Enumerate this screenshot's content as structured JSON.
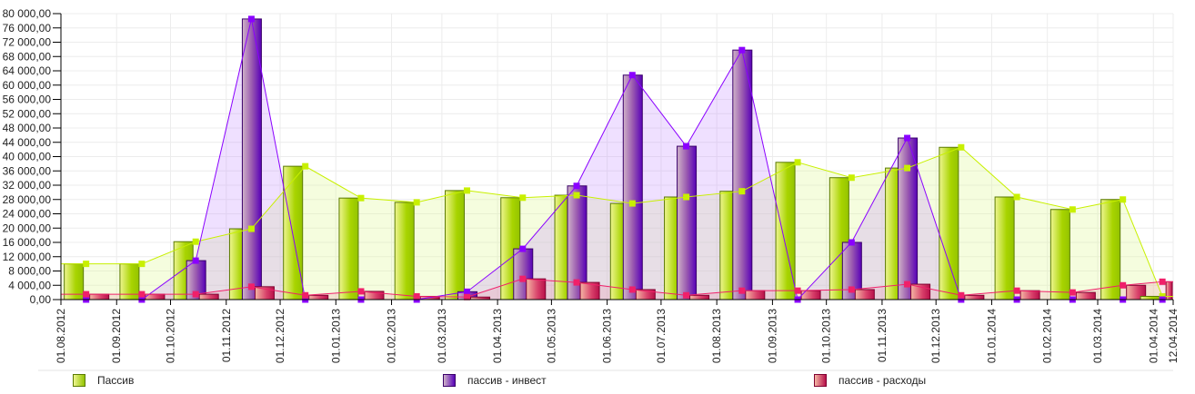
{
  "chart_data": {
    "type": "bar",
    "title": "",
    "xlabel": "",
    "ylabel": "",
    "ylim": [
      0,
      80000
    ],
    "ytick_step": 4000,
    "y_tick_labels": [
      "0,00",
      "4 000,00",
      "8 000,00",
      "12 000,00",
      "16 000,00",
      "20 000,00",
      "24 000,00",
      "28 000,00",
      "32 000,00",
      "36 000,00",
      "40 000,00",
      "44 000,00",
      "48 000,00",
      "52 000,00",
      "56 000,00",
      "60 000,00",
      "64 000,00",
      "68 000,00",
      "72 000,00",
      "76 000,00",
      "80 000,00"
    ],
    "x_range": [
      "2012-08-01",
      "2014-04-12"
    ],
    "x_tick_labels": [
      "01.08.2012",
      "01.09.2012",
      "01.10.2012",
      "01.11.2012",
      "01.12.2012",
      "01.01.2013",
      "01.02.2013",
      "01.03.2013",
      "01.04.2013",
      "01.05.2013",
      "01.06.2013",
      "01.07.2013",
      "01.08.2013",
      "01.09.2013",
      "01.10.2013",
      "01.11.2013",
      "01.12.2013",
      "01.01.2014",
      "01.02.2014",
      "01.03.2014",
      "01.04.2014",
      "12.04.2014"
    ],
    "x_tick_dates": [
      "2012-08-01",
      "2012-09-01",
      "2012-10-01",
      "2012-11-01",
      "2012-12-01",
      "2013-01-01",
      "2013-02-01",
      "2013-03-01",
      "2013-04-01",
      "2013-05-01",
      "2013-06-01",
      "2013-07-01",
      "2013-08-01",
      "2013-09-01",
      "2013-10-01",
      "2013-11-01",
      "2013-12-01",
      "2014-01-01",
      "2014-02-01",
      "2014-03-01",
      "2014-04-01",
      "2014-04-12"
    ],
    "x": [
      "2012-08-15",
      "2012-09-15",
      "2012-10-15",
      "2012-11-15",
      "2012-12-15",
      "2013-01-15",
      "2013-02-15",
      "2013-03-15",
      "2013-04-15",
      "2013-05-15",
      "2013-06-15",
      "2013-07-15",
      "2013-08-15",
      "2013-09-15",
      "2013-10-15",
      "2013-11-15",
      "2013-12-15",
      "2014-01-15",
      "2014-02-15",
      "2014-03-15",
      "2014-04-06"
    ],
    "grid": true,
    "legend_placement": "bottom",
    "series": [
      {
        "name": "Пассив",
        "color": "#c8f000",
        "values": [
          10000,
          10000,
          16200,
          19800,
          37300,
          28400,
          27200,
          30500,
          28500,
          29200,
          26900,
          28700,
          30300,
          38400,
          34100,
          36800,
          42600,
          28700,
          25200,
          28000,
          900
        ]
      },
      {
        "name": "пассив - инвест",
        "color": "#8a00ff",
        "values": [
          0,
          0,
          10900,
          78500,
          0,
          0,
          0,
          2200,
          14200,
          31800,
          62800,
          42900,
          69800,
          0,
          16000,
          45200,
          0,
          0,
          0,
          0,
          0
        ]
      },
      {
        "name": "пассив - расходы",
        "color": "#f0206a",
        "values": [
          1500,
          1500,
          1500,
          3600,
          1200,
          2300,
          900,
          700,
          5800,
          4800,
          2800,
          1200,
          2500,
          2500,
          2800,
          4300,
          1200,
          2500,
          2000,
          4000,
          5000
        ]
      }
    ]
  }
}
